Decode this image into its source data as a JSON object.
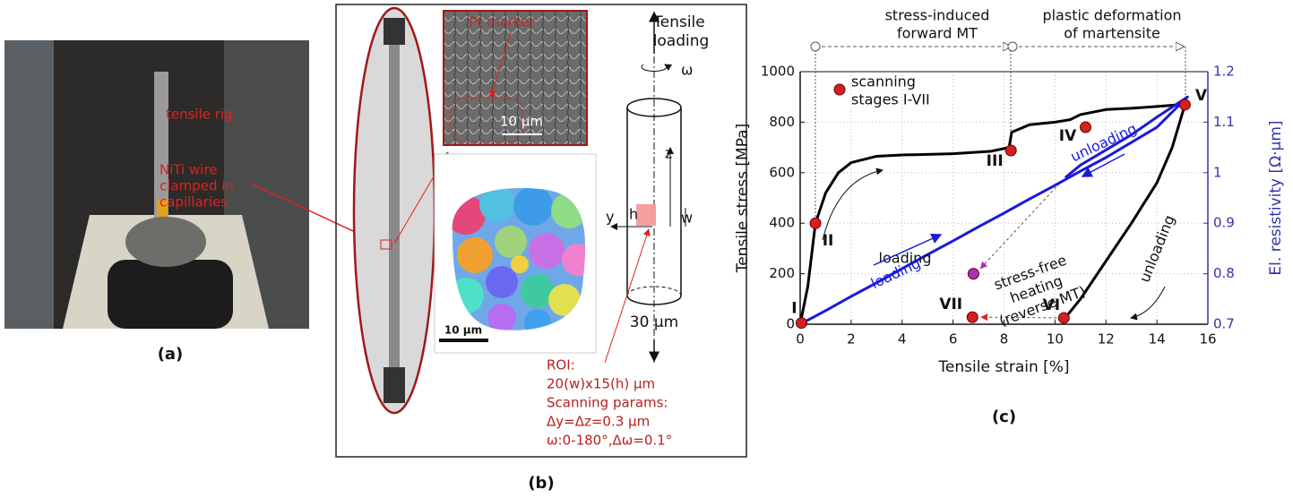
{
  "panel_a": {
    "labels": [
      "tensile rig",
      "NiTi wire",
      "clamped in",
      "capillaries"
    ],
    "caption": "(a)"
  },
  "panel_b": {
    "pt_marker": "Pt marker",
    "sem_scale": "10 µm",
    "ebsd_scale": "10 µm",
    "tensile": "Tensile",
    "loading": "loading",
    "omega": "ω",
    "z": "z",
    "w": "w",
    "y": "y",
    "h": "h",
    "diameter": "30 μm",
    "roi": [
      "ROI:",
      "20(w)x15(h) µm",
      "Scanning params:",
      "Δy=Δz=0.3 µm",
      "ω:0-180°,Δω=0.1°"
    ],
    "caption": "(b)"
  },
  "chart_data": {
    "type": "line",
    "x_label": "Tensile strain [%]",
    "y_label": "Tensile stress [MPa]",
    "y2_label": "El. resistivity [Ω·μm]",
    "caption": "(c)",
    "xlim": [
      0,
      16
    ],
    "xticks": [
      0,
      2,
      4,
      6,
      8,
      10,
      12,
      14,
      16
    ],
    "ylim": [
      0,
      1000
    ],
    "yticks": [
      0,
      200,
      400,
      600,
      800,
      1000
    ],
    "y2lim": [
      0.7,
      1.2
    ],
    "y2ticks": [
      0.7,
      0.8,
      0.9,
      1,
      1.1,
      1.2
    ],
    "grid": true,
    "series": [
      {
        "color": "#000000",
        "x": [
          0,
          0.3,
          0.6,
          1,
          1.5,
          2,
          3,
          4,
          6,
          7.5,
          8.2,
          8.3,
          9,
          10,
          10.6,
          11,
          12,
          13,
          14,
          15,
          15.1,
          14.6,
          14,
          13,
          12,
          11,
          10.4
        ],
        "values": [
          0,
          150,
          400,
          520,
          600,
          640,
          665,
          670,
          675,
          685,
          700,
          760,
          790,
          800,
          810,
          830,
          850,
          855,
          862,
          870,
          869,
          700,
          560,
          400,
          250,
          100,
          25
        ]
      },
      {
        "color": "#1a1adb",
        "axis": "y2",
        "x": [
          0,
          1,
          2,
          3,
          4,
          5,
          6,
          7,
          8,
          9,
          10,
          11,
          12,
          13,
          14,
          15.2,
          14,
          13,
          12,
          11,
          10.4
        ],
        "values": [
          0.7,
          0.727,
          0.755,
          0.782,
          0.81,
          0.838,
          0.865,
          0.893,
          0.92,
          0.948,
          0.975,
          1.003,
          1.03,
          1.06,
          1.09,
          1.15,
          1.11,
          1.075,
          1.045,
          1.015,
          0.99
        ]
      },
      {
        "type": "scatter",
        "color": "#d42020",
        "x": [
          0.05,
          0.6,
          8.27,
          11.2,
          15.1,
          10.35,
          6.76
        ],
        "values": [
          5,
          400,
          688,
          780,
          869,
          25,
          28
        ],
        "point_labels": [
          "I",
          "II",
          "III",
          "IV",
          "V",
          "VI",
          "VII"
        ]
      },
      {
        "type": "scatter",
        "color": "#b030b0",
        "axis": "y2",
        "x": [
          6.8
        ],
        "values": [
          0.8
        ]
      }
    ],
    "annotations": [
      {
        "lines": [
          "stress-induced",
          "forward MT"
        ]
      },
      {
        "lines": [
          "plastic deformation",
          "of martensite"
        ]
      },
      {
        "lines": [
          "scanning",
          "stages I-VII"
        ]
      },
      {
        "lines": [
          "loading"
        ]
      },
      {
        "lines": [
          "loading"
        ]
      },
      {
        "lines": [
          "unloading"
        ]
      },
      {
        "lines": [
          "unloading"
        ]
      },
      {
        "lines": [
          "stress-free",
          "heating",
          "(reverse MT)"
        ]
      }
    ]
  }
}
